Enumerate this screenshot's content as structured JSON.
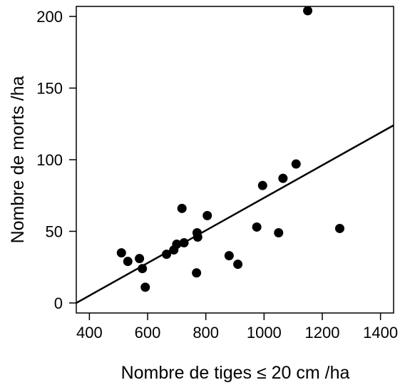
{
  "chart_data": {
    "type": "scatter",
    "xlabel": "Nombre de tiges ≤ 20 cm /ha",
    "ylabel": "Nombre de morts /ha",
    "xlim": [
      355,
      1445
    ],
    "ylim": [
      -7,
      207
    ],
    "x_ticks": [
      400,
      600,
      800,
      1000,
      1200,
      1400
    ],
    "x_tick_labels": [
      "400",
      "600",
      "800",
      "1000",
      "1200",
      "1400"
    ],
    "y_ticks": [
      0,
      50,
      100,
      150,
      200
    ],
    "y_tick_labels": [
      "0",
      "50",
      "100",
      "150",
      "200"
    ],
    "grid": false,
    "legend": "none",
    "points": [
      {
        "x": 510,
        "y": 35
      },
      {
        "x": 532,
        "y": 29
      },
      {
        "x": 572,
        "y": 31
      },
      {
        "x": 582,
        "y": 24
      },
      {
        "x": 592,
        "y": 11
      },
      {
        "x": 665,
        "y": 34
      },
      {
        "x": 690,
        "y": 37
      },
      {
        "x": 700,
        "y": 41
      },
      {
        "x": 718,
        "y": 66
      },
      {
        "x": 725,
        "y": 42
      },
      {
        "x": 768,
        "y": 21
      },
      {
        "x": 770,
        "y": 49
      },
      {
        "x": 772,
        "y": 46
      },
      {
        "x": 805,
        "y": 61
      },
      {
        "x": 880,
        "y": 33
      },
      {
        "x": 910,
        "y": 27
      },
      {
        "x": 975,
        "y": 53
      },
      {
        "x": 995,
        "y": 82
      },
      {
        "x": 1050,
        "y": 49
      },
      {
        "x": 1065,
        "y": 87
      },
      {
        "x": 1110,
        "y": 97
      },
      {
        "x": 1150,
        "y": 204
      },
      {
        "x": 1260,
        "y": 52
      }
    ],
    "fit_line": {
      "x": [
        355,
        1445
      ],
      "y": [
        0,
        124
      ]
    },
    "colors": {
      "points": "#000000",
      "line": "#000000",
      "axes": "#000000"
    }
  }
}
